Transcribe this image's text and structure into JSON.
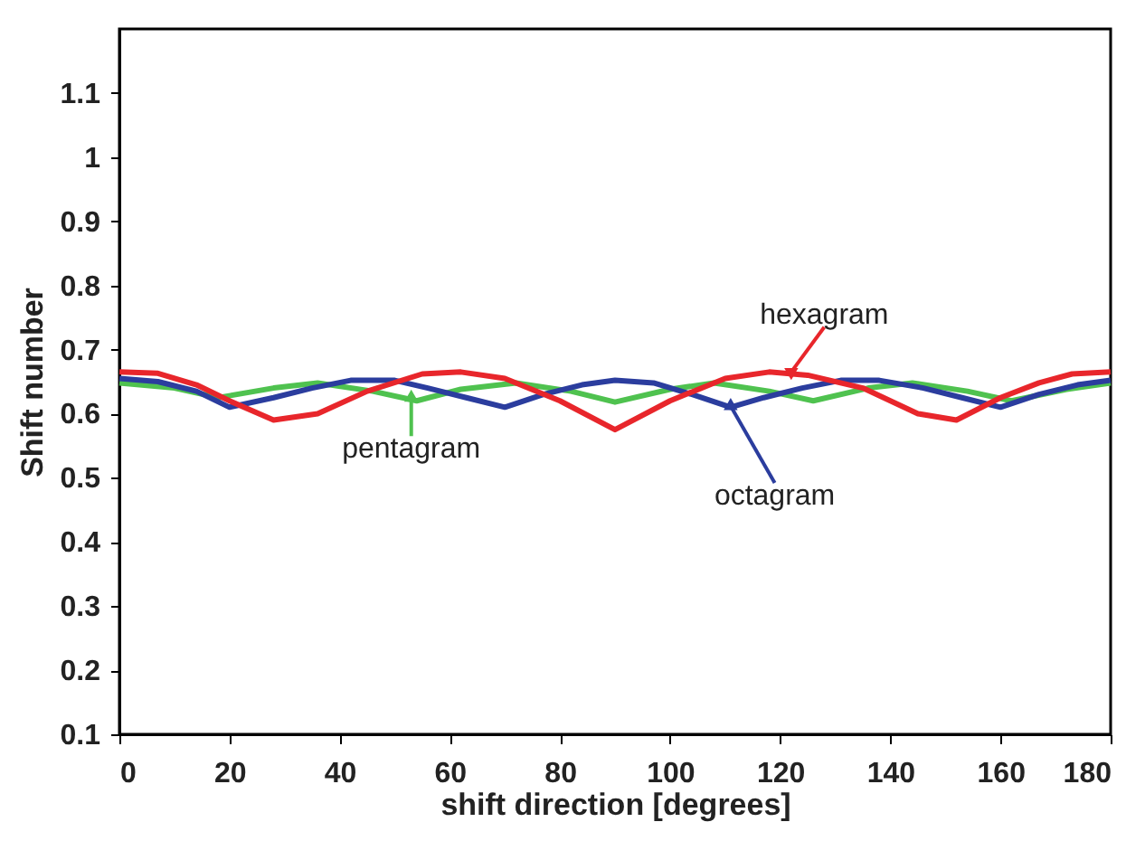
{
  "chart_data": {
    "type": "line",
    "xlabel": "shift direction [degrees]",
    "ylabel": "Shift number",
    "xlim": [
      0,
      180
    ],
    "xticks": [
      0,
      20,
      40,
      60,
      80,
      100,
      120,
      140,
      160,
      180
    ],
    "ylim": [
      0.1,
      1.2
    ],
    "yticks": [
      0.1,
      0.2,
      0.3,
      0.4,
      0.5,
      0.6,
      0.7,
      0.8,
      0.9,
      1,
      1.1
    ],
    "grid": false,
    "marker": "none",
    "line_style": "solid",
    "series": [
      {
        "color": "#4fc24f",
        "x": [
          0,
          10,
          18,
          28,
          36,
          46,
          54,
          62,
          72,
          82,
          90,
          100,
          108,
          118,
          126,
          136,
          144,
          154,
          162,
          172,
          180
        ],
        "values": [
          0.648,
          0.64,
          0.625,
          0.64,
          0.648,
          0.635,
          0.62,
          0.638,
          0.648,
          0.635,
          0.618,
          0.638,
          0.648,
          0.635,
          0.62,
          0.64,
          0.648,
          0.635,
          0.62,
          0.638,
          0.648
        ]
      },
      {
        "color": "#2b3d9e",
        "x": [
          0,
          7,
          14,
          20,
          28,
          35,
          42,
          50,
          56,
          63,
          70,
          77,
          84,
          90,
          97,
          104,
          111,
          117,
          124,
          131,
          138,
          146,
          153,
          160,
          167,
          174,
          180
        ],
        "values": [
          0.655,
          0.65,
          0.635,
          0.61,
          0.625,
          0.64,
          0.652,
          0.652,
          0.64,
          0.625,
          0.61,
          0.63,
          0.645,
          0.652,
          0.648,
          0.63,
          0.61,
          0.625,
          0.64,
          0.652,
          0.652,
          0.64,
          0.625,
          0.61,
          0.63,
          0.645,
          0.652
        ]
      },
      {
        "color": "#e8262b",
        "x": [
          0,
          7,
          14,
          20,
          28,
          36,
          45,
          55,
          62,
          70,
          80,
          90,
          100,
          110,
          118,
          125,
          135,
          145,
          152,
          160,
          167,
          173,
          180
        ],
        "values": [
          0.665,
          0.663,
          0.645,
          0.62,
          0.59,
          0.6,
          0.635,
          0.662,
          0.665,
          0.655,
          0.62,
          0.575,
          0.62,
          0.655,
          0.665,
          0.66,
          0.64,
          0.6,
          0.59,
          0.625,
          0.648,
          0.662,
          0.665
        ]
      }
    ],
    "annotations": [
      {
        "text": "hexagram",
        "x": 122,
        "y": 0.665
      },
      {
        "text": "pentagram",
        "x": 53,
        "y": 0.625
      },
      {
        "text": "octagram",
        "x": 111,
        "y": 0.612
      }
    ]
  }
}
